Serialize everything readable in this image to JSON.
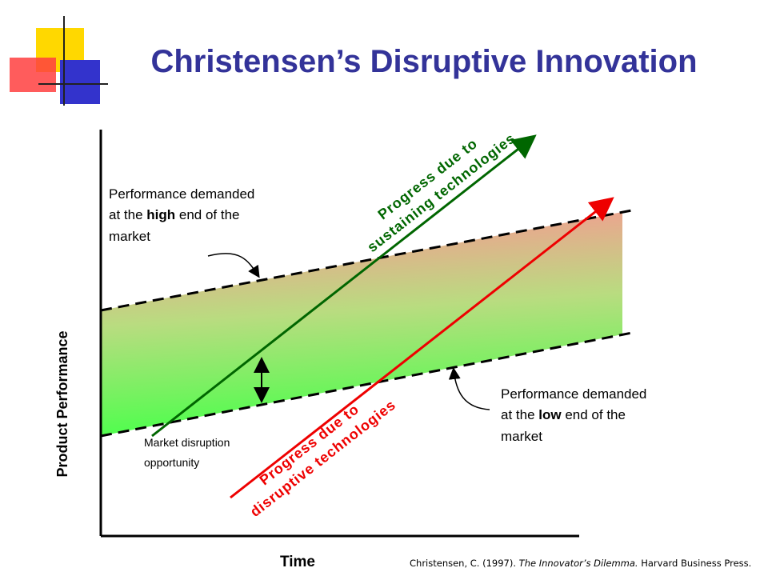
{
  "title": "Christensen’s Disruptive Innovation",
  "axes": {
    "y_label": "Product Performance",
    "x_label": "Time"
  },
  "annotations": {
    "high_end": [
      "Performance demanded",
      "at the ",
      "high",
      " end of the",
      "market"
    ],
    "low_end": [
      "Performance demanded",
      "at the ",
      "low",
      " end of the",
      "market"
    ],
    "disruption": [
      "Market disruption",
      "opportunity"
    ],
    "sustaining": [
      "Progress due to",
      "sustaining technologies"
    ],
    "disruptive": [
      "Progress due to",
      "disruptive technologies"
    ]
  },
  "citation": [
    "Christensen, C. (1997). ",
    "The Innovator’s Dilemma.",
    " Harvard Business Press."
  ]
}
